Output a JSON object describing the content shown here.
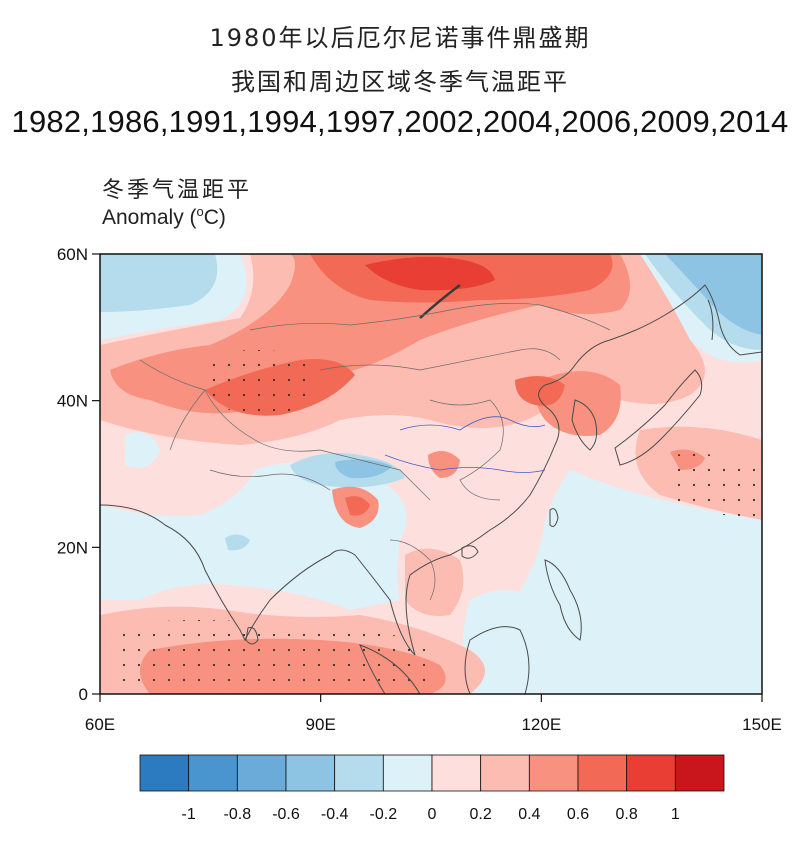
{
  "header": {
    "title_line1": "1980年以后厄尔尼诺事件鼎盛期",
    "title_line2": "我国和周边区域冬季气温距平",
    "years": "1982,1986,1991,1994,1997,2002,2004,2006,2009,2014"
  },
  "plot": {
    "label_cn": "冬季气温距平",
    "label_en_prefix": "Anomaly (",
    "label_en_sup": "o",
    "label_en_suffix": "C)",
    "lat_ticks": [
      {
        "value": 60,
        "label": "60N"
      },
      {
        "value": 40,
        "label": "40N"
      },
      {
        "value": 20,
        "label": "20N"
      },
      {
        "value": 0,
        "label": "0"
      }
    ],
    "lon_ticks": [
      {
        "value": 60,
        "label": "60E"
      },
      {
        "value": 90,
        "label": "90E"
      },
      {
        "value": 120,
        "label": "120E"
      },
      {
        "value": 150,
        "label": "150E"
      }
    ],
    "lon_range": [
      60,
      150
    ],
    "lat_range": [
      0,
      60
    ]
  },
  "colorbar": {
    "colors": [
      "#2c7bc0",
      "#4a94cf",
      "#6aabd9",
      "#8ec4e3",
      "#b5dcec",
      "#ddf1f8",
      "#fde0dd",
      "#fcbcb2",
      "#f8917f",
      "#f26a55",
      "#e83e33",
      "#c8161c"
    ],
    "labels": [
      "-1",
      "-0.8",
      "-0.6",
      "-0.4",
      "-0.2",
      "0",
      "0.2",
      "0.4",
      "0.6",
      "0.8",
      "1"
    ]
  }
}
